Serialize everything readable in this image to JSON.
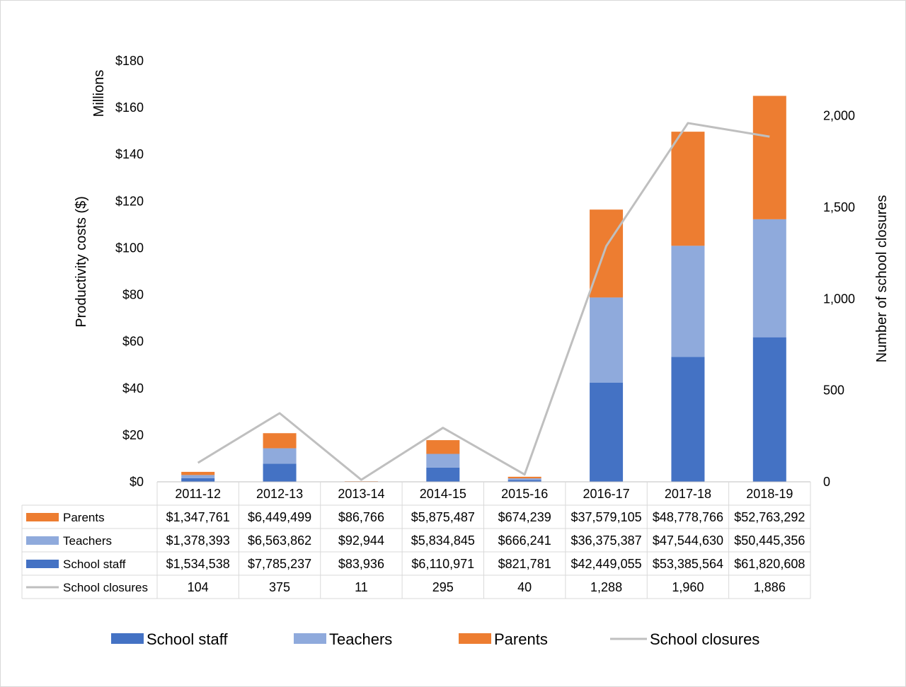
{
  "chart_data": {
    "type": "bar",
    "stacked": true,
    "categories": [
      "2011-12",
      "2012-13",
      "2013-14",
      "2014-15",
      "2015-16",
      "2016-17",
      "2017-18",
      "2018-19"
    ],
    "units_label": "Millions",
    "ylabel": "Productivity costs ($)",
    "ylabel_right": "Number of school closures",
    "ylim": [
      0,
      180
    ],
    "y_ticks": [
      "$0",
      "$20",
      "$40",
      "$60",
      "$80",
      "$100",
      "$120",
      "$140",
      "$160",
      "$180"
    ],
    "ylim_right": [
      0,
      2300
    ],
    "y_ticks_right": [
      "0",
      "500",
      "1,000",
      "1,500",
      "2,000"
    ],
    "series": [
      {
        "name": "School staff",
        "type": "bar",
        "color": "#4472c4",
        "values": [
          1534538,
          7785237,
          83936,
          6110971,
          821781,
          42449055,
          53385564,
          61820608
        ],
        "labels": [
          "$1,534,538",
          "$7,785,237",
          "$83,936",
          "$6,110,971",
          "$821,781",
          "$42,449,055",
          "$53,385,564",
          "$61,820,608"
        ]
      },
      {
        "name": "Teachers",
        "type": "bar",
        "color": "#8faadc",
        "values": [
          1378393,
          6563862,
          92944,
          5834845,
          666241,
          36375387,
          47544630,
          50445356
        ],
        "labels": [
          "$1,378,393",
          "$6,563,862",
          "$92,944",
          "$5,834,845",
          "$666,241",
          "$36,375,387",
          "$47,544,630",
          "$50,445,356"
        ]
      },
      {
        "name": "Parents",
        "type": "bar",
        "color": "#ed7d31",
        "values": [
          1347761,
          6449499,
          86766,
          5875487,
          674239,
          37579105,
          48778766,
          52763292
        ],
        "labels": [
          "$1,347,761",
          "$6,449,499",
          "$86,766",
          "$5,875,487",
          "$674,239",
          "$37,579,105",
          "$48,778,766",
          "$52,763,292"
        ]
      },
      {
        "name": "School closures",
        "type": "line",
        "axis": "right",
        "color": "#bfbfbf",
        "values": [
          104,
          375,
          11,
          295,
          40,
          1288,
          1960,
          1886
        ],
        "labels": [
          "104",
          "375",
          "11",
          "295",
          "40",
          "1,288",
          "1,960",
          "1,886"
        ]
      }
    ],
    "table_row_order": [
      "Parents",
      "Teachers",
      "School staff",
      "School closures"
    ],
    "legend_order": [
      "School staff",
      "Teachers",
      "Parents",
      "School closures"
    ],
    "legend_position": "bottom",
    "grid": false
  }
}
